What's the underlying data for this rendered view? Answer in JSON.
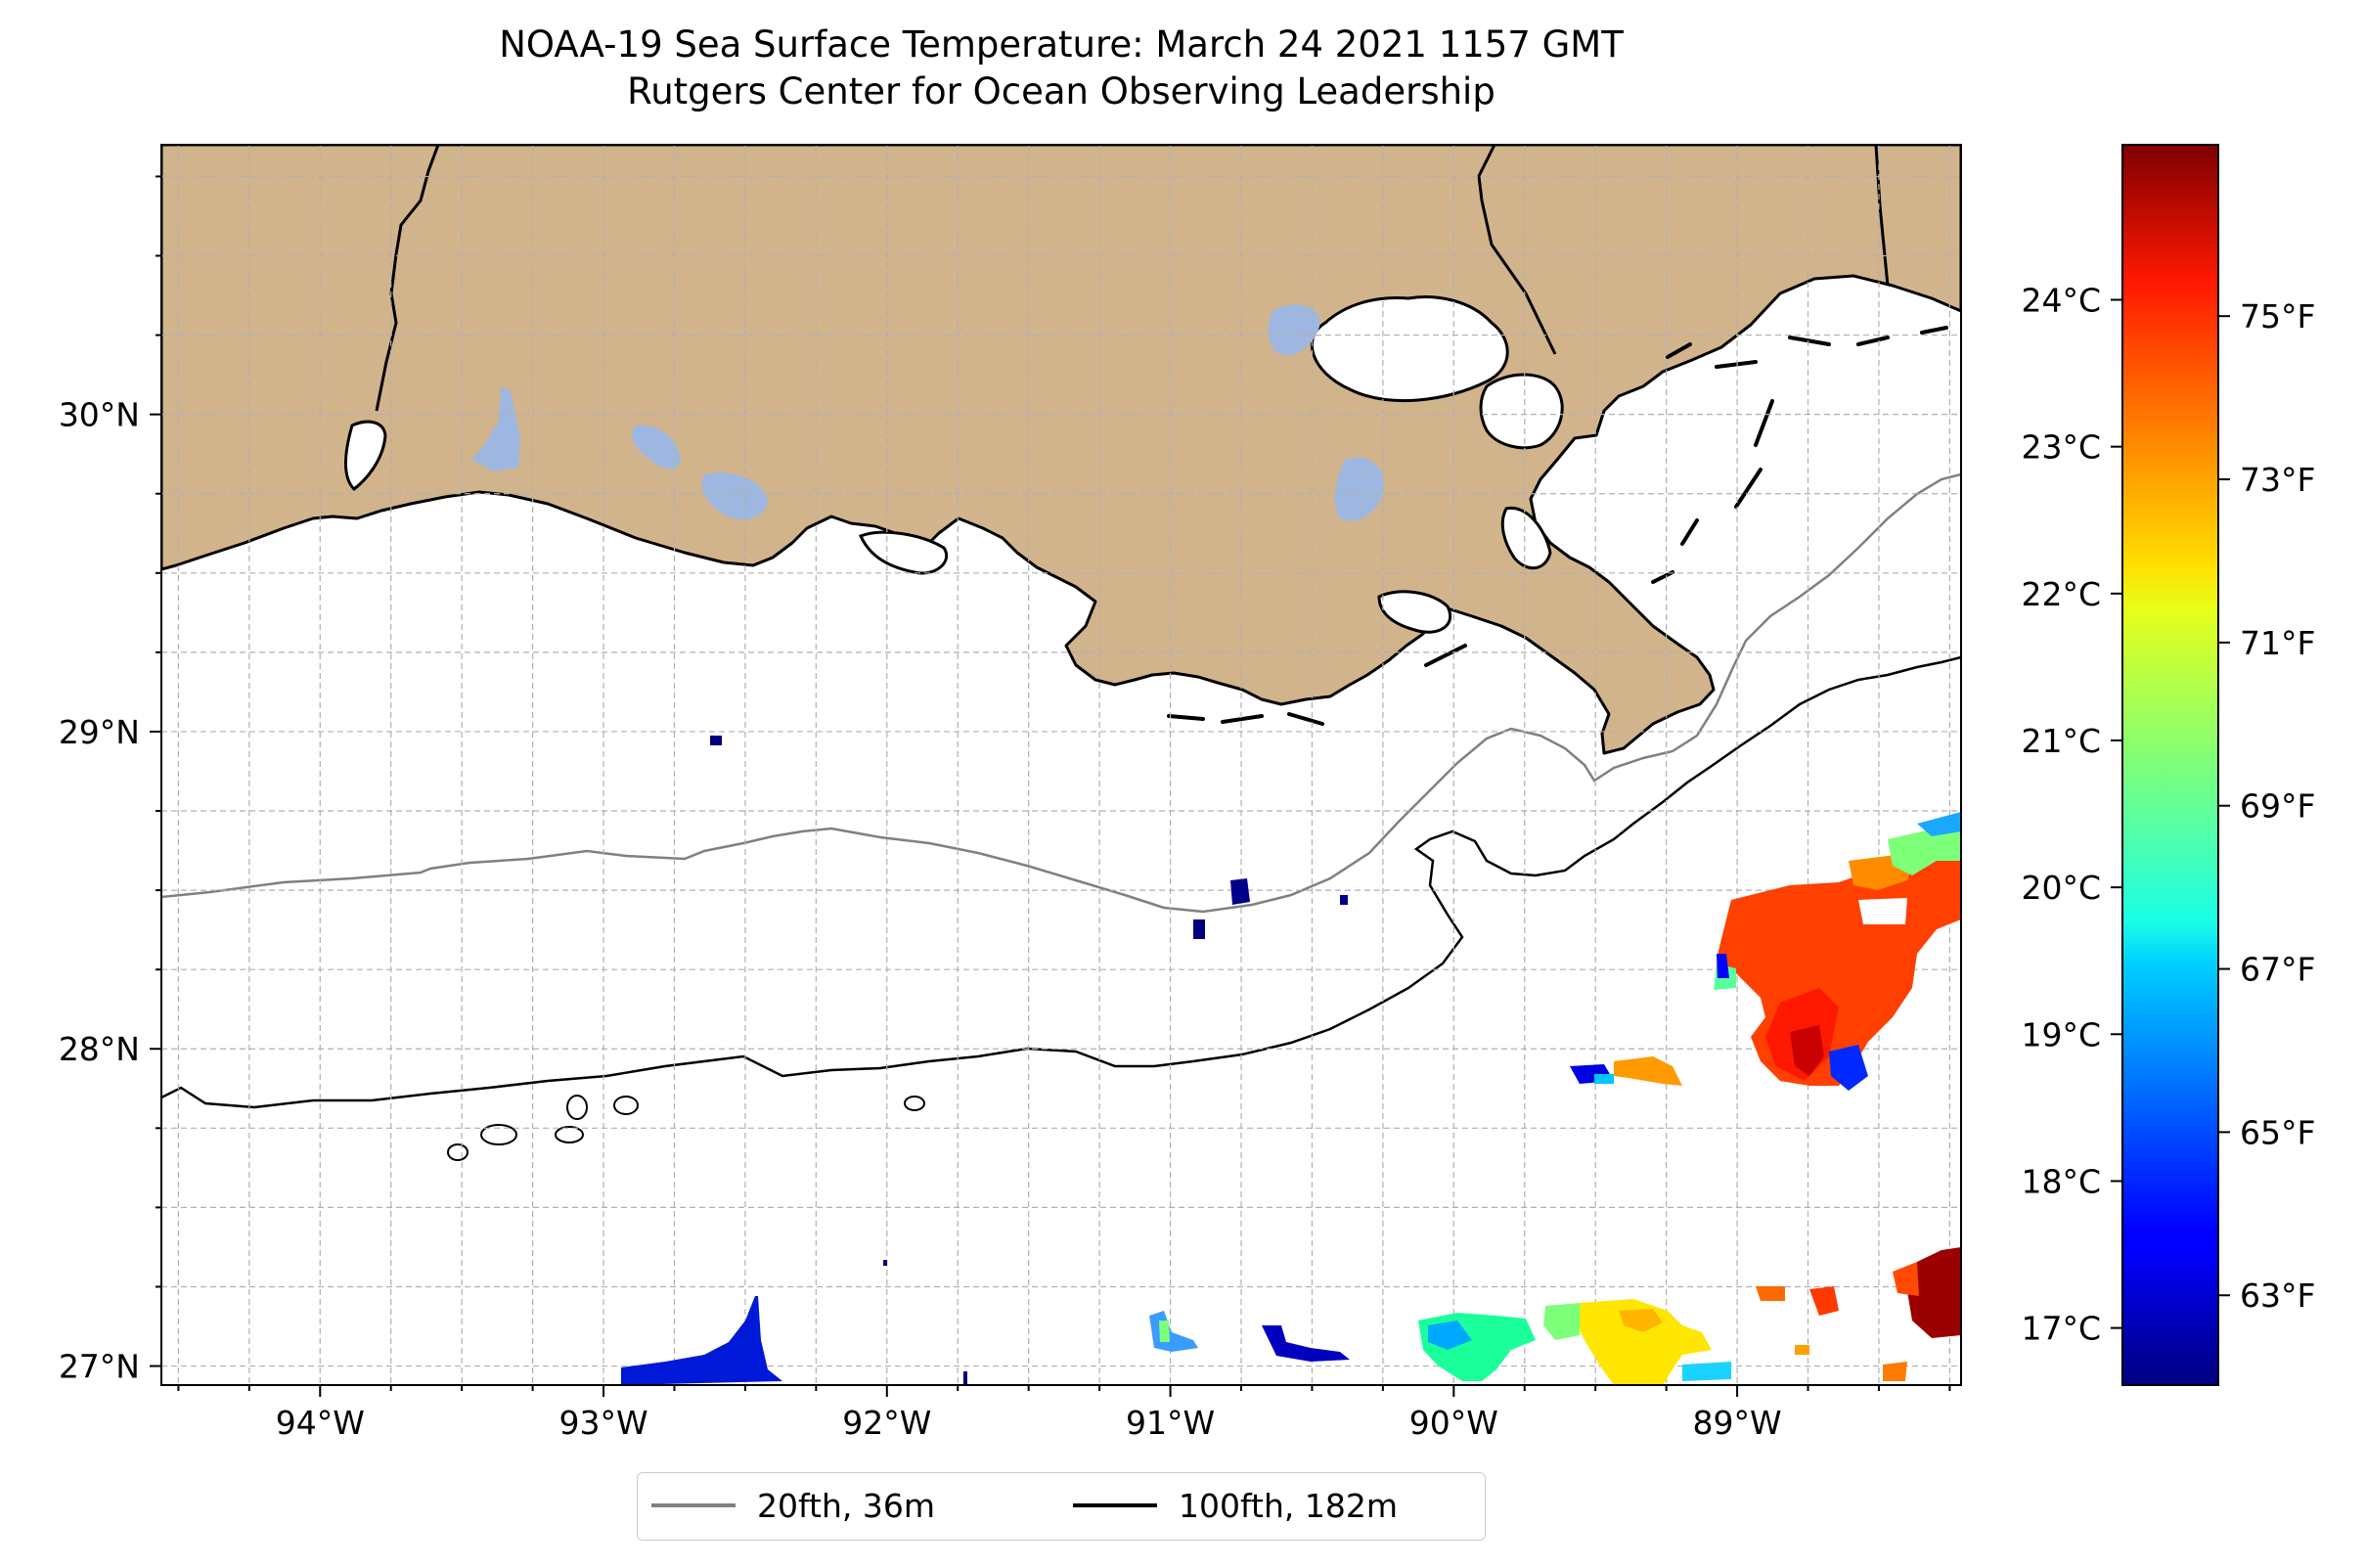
{
  "title": {
    "line1": "NOAA-19 Sea Surface Temperature: March 24 2021 1157 GMT",
    "line2": "Rutgers Center for Ocean Observing Leadership"
  },
  "map": {
    "lon_range": [
      -94.56,
      -88.21
    ],
    "lat_range": [
      26.94,
      30.85
    ],
    "lon_ticks": [
      "94°W",
      "93°W",
      "92°W",
      "91°W",
      "90°W",
      "89°W"
    ],
    "lat_ticks": [
      "27°N",
      "28°N",
      "29°N",
      "30°N"
    ],
    "gridlines": true,
    "colors": {
      "land": "#d2b48c",
      "lakes": "#9db7e0",
      "ocean": "#ffffff",
      "coastline": "#000000"
    }
  },
  "colorbar": {
    "colormap": "jet",
    "celsius_ticks": [
      "17°C",
      "18°C",
      "19°C",
      "20°C",
      "21°C",
      "22°C",
      "23°C",
      "24°C"
    ],
    "fahrenheit_ticks": [
      "63°F",
      "65°F",
      "67°F",
      "69°F",
      "71°F",
      "73°F",
      "75°F"
    ],
    "range_f": [
      61.9,
      77.1
    ]
  },
  "legend": {
    "placement": "lower center",
    "items": [
      {
        "label": "20fth, 36m",
        "color": "#808080"
      },
      {
        "label": "100fth, 182m",
        "color": "#000000"
      }
    ]
  }
}
